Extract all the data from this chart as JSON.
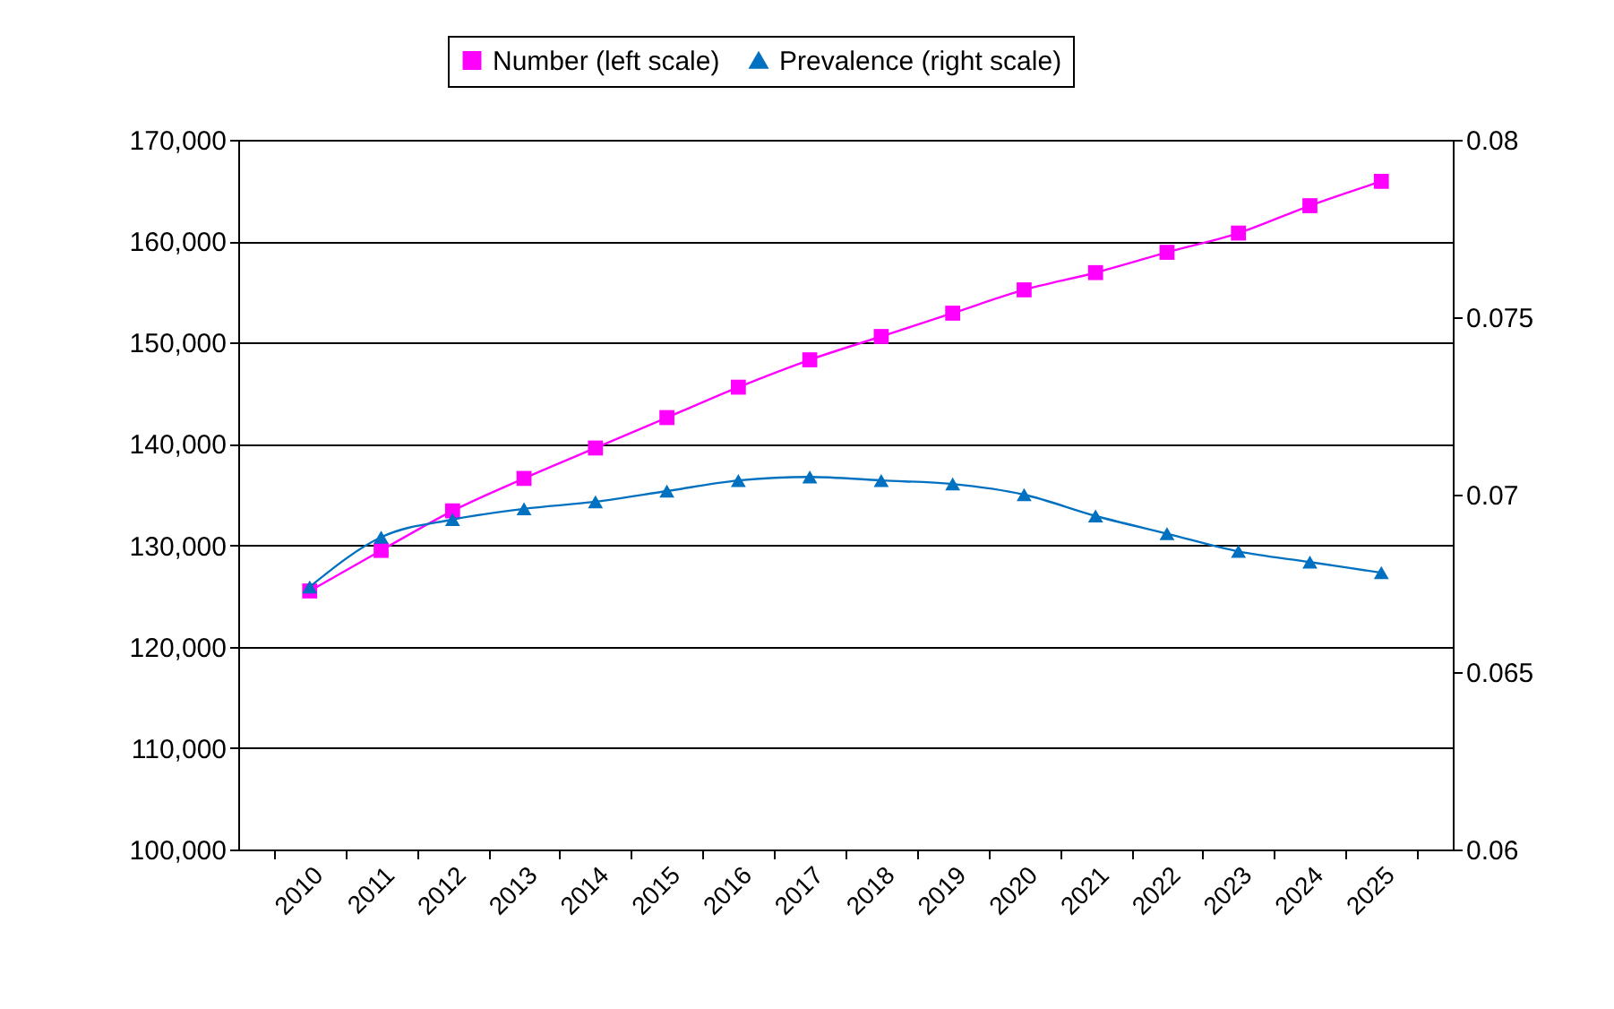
{
  "chart_data": {
    "type": "line",
    "categories": [
      "2010",
      "2011",
      "2012",
      "2013",
      "2014",
      "2015",
      "2016",
      "2017",
      "2018",
      "2019",
      "2020",
      "2021",
      "2022",
      "2023",
      "2024",
      "2025"
    ],
    "series": [
      {
        "name": "Number (left scale)",
        "color": "#ff00ff",
        "marker": "square",
        "values": [
          125500,
          129500,
          133400,
          136600,
          139600,
          142600,
          145600,
          148300,
          150600,
          152900,
          155200,
          156900,
          158900,
          160800,
          163500,
          165900
        ]
      },
      {
        "name": "Prevalence (right scale)",
        "color": "#0070c0",
        "marker": "triangle",
        "axis": "y2",
        "values": [
          0.0674,
          0.0688,
          0.0693,
          0.0696,
          0.0698,
          0.0701,
          0.0704,
          0.0705,
          0.0704,
          0.0703,
          0.07,
          0.0694,
          0.0689,
          0.0684,
          0.0681,
          0.0678
        ]
      }
    ],
    "ylim": [
      100000,
      170000
    ],
    "yticks": [
      {
        "value": 100000,
        "label": "100,000"
      },
      {
        "value": 110000,
        "label": "110,000"
      },
      {
        "value": 120000,
        "label": "120,000"
      },
      {
        "value": 130000,
        "label": "130,000"
      },
      {
        "value": 140000,
        "label": "140,000"
      },
      {
        "value": 150000,
        "label": "150,000"
      },
      {
        "value": 160000,
        "label": "160,000"
      },
      {
        "value": 170000,
        "label": "170,000"
      }
    ],
    "y2lim": [
      0.06,
      0.08
    ],
    "y2ticks": [
      0.06,
      0.065,
      0.07,
      0.075,
      0.08
    ],
    "grid": "y",
    "legend": "top",
    "line_style": "solid"
  }
}
